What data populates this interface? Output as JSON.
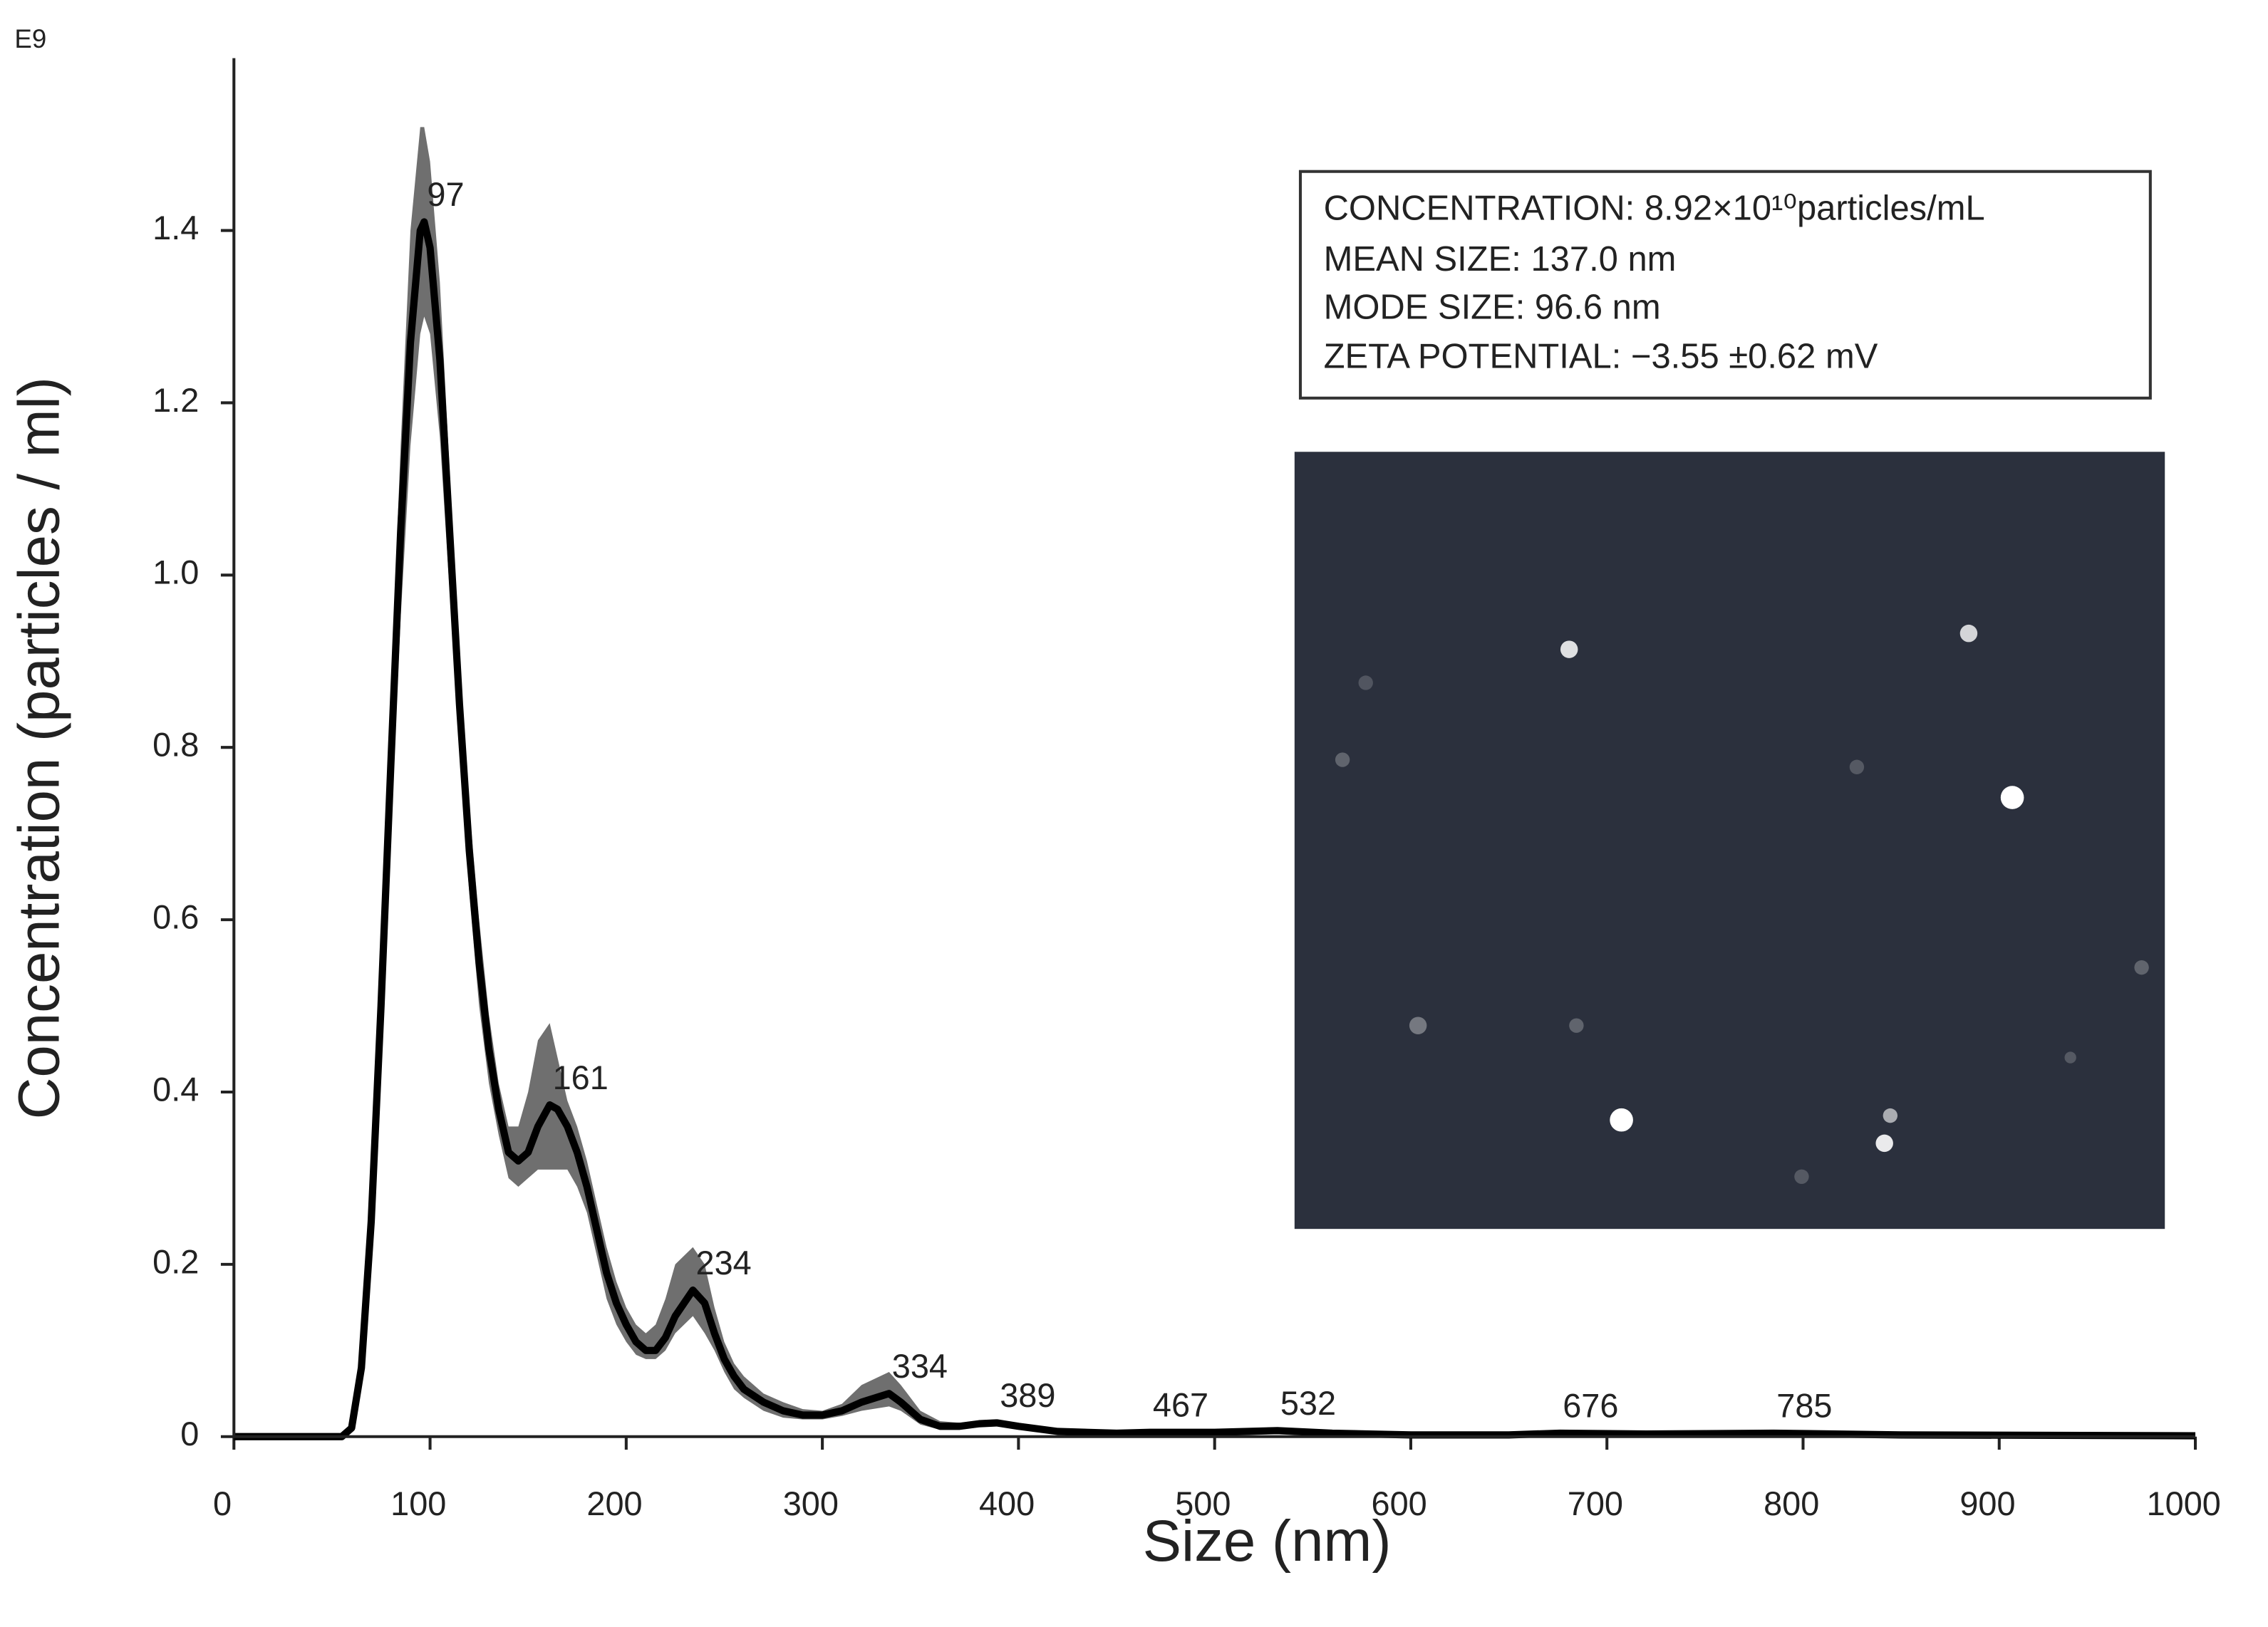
{
  "chart_data": {
    "type": "line",
    "unit_label": "E9",
    "y_label": "Concentration (particles / ml)",
    "x_label": "Size (nm)",
    "xlim": [
      0,
      1000
    ],
    "xticks": [
      0,
      100,
      200,
      300,
      400,
      500,
      600,
      700,
      800,
      900,
      1000
    ],
    "ylim": [
      0,
      1.6
    ],
    "yticks": [
      0,
      0.2,
      0.4,
      0.6,
      0.8,
      {
        "value": 1,
        "label": "1.0"
      },
      1.2,
      1.4
    ],
    "x": [
      0,
      50,
      55,
      60,
      65,
      70,
      75,
      80,
      85,
      90,
      95,
      97,
      100,
      105,
      110,
      115,
      120,
      125,
      130,
      135,
      140,
      145,
      150,
      155,
      161,
      165,
      170,
      175,
      180,
      185,
      190,
      195,
      200,
      205,
      210,
      215,
      220,
      225,
      234,
      240,
      245,
      250,
      255,
      260,
      270,
      280,
      290,
      300,
      310,
      320,
      334,
      340,
      350,
      360,
      370,
      380,
      389,
      400,
      420,
      450,
      467,
      500,
      532,
      560,
      600,
      650,
      676,
      720,
      785,
      850,
      1000
    ],
    "series": [
      {
        "color": "#000000",
        "band_color": "#6f6f6f",
        "values": [
          0,
          0,
          0,
          0.01,
          0.08,
          0.25,
          0.5,
          0.78,
          1.05,
          1.27,
          1.4,
          1.41,
          1.38,
          1.25,
          1.05,
          0.85,
          0.68,
          0.55,
          0.45,
          0.38,
          0.33,
          0.32,
          0.33,
          0.36,
          0.385,
          0.38,
          0.36,
          0.33,
          0.29,
          0.24,
          0.19,
          0.155,
          0.13,
          0.11,
          0.1,
          0.1,
          0.115,
          0.14,
          0.17,
          0.155,
          0.12,
          0.09,
          0.07,
          0.055,
          0.04,
          0.03,
          0.025,
          0.025,
          0.03,
          0.04,
          0.05,
          0.04,
          0.02,
          0.012,
          0.012,
          0.015,
          0.016,
          0.012,
          0.006,
          0.004,
          0.005,
          0.005,
          0.007,
          0.004,
          0.002,
          0.002,
          0.004,
          0.003,
          0.004,
          0.002,
          0.001
        ],
        "upper": [
          0,
          0,
          0.002,
          0.015,
          0.1,
          0.29,
          0.56,
          0.86,
          1.15,
          1.4,
          1.52,
          1.52,
          1.48,
          1.34,
          1.12,
          0.91,
          0.73,
          0.6,
          0.49,
          0.41,
          0.36,
          0.36,
          0.4,
          0.46,
          0.48,
          0.44,
          0.39,
          0.36,
          0.32,
          0.27,
          0.22,
          0.18,
          0.15,
          0.13,
          0.12,
          0.13,
          0.16,
          0.2,
          0.22,
          0.2,
          0.15,
          0.11,
          0.085,
          0.07,
          0.05,
          0.04,
          0.032,
          0.03,
          0.038,
          0.06,
          0.075,
          0.06,
          0.03,
          0.018,
          0.016,
          0.019,
          0.02,
          0.016,
          0.009,
          0.006,
          0.007,
          0.007,
          0.009,
          0.006,
          0.003,
          0.003,
          0.005,
          0.004,
          0.005,
          0.003,
          0.002
        ],
        "lower": [
          0,
          0,
          0,
          0.006,
          0.06,
          0.21,
          0.44,
          0.7,
          0.95,
          1.15,
          1.28,
          1.3,
          1.28,
          1.16,
          0.98,
          0.79,
          0.63,
          0.5,
          0.41,
          0.35,
          0.3,
          0.29,
          0.3,
          0.31,
          0.31,
          0.31,
          0.31,
          0.29,
          0.26,
          0.21,
          0.16,
          0.13,
          0.11,
          0.095,
          0.09,
          0.09,
          0.1,
          0.12,
          0.14,
          0.12,
          0.1,
          0.075,
          0.055,
          0.045,
          0.03,
          0.022,
          0.02,
          0.02,
          0.024,
          0.03,
          0.035,
          0.03,
          0.014,
          0.008,
          0.008,
          0.011,
          0.012,
          0.008,
          0.004,
          0.003,
          0.003,
          0.003,
          0.005,
          0.003,
          0.001,
          0.001,
          0.003,
          0.002,
          0.003,
          0.001,
          0.0005
        ]
      }
    ],
    "peaks": [
      97,
      161,
      234,
      334,
      389,
      467,
      532,
      676,
      785
    ],
    "info": [
      "CONCENTRATION: 8.92×10¹⁰particles/mL",
      "MEAN SIZE: 137.0 nm",
      "MODE SIZE: 96.6 nm",
      "ZETA POTENTIAL: −3.55 ±0.62 mV"
    ]
  }
}
